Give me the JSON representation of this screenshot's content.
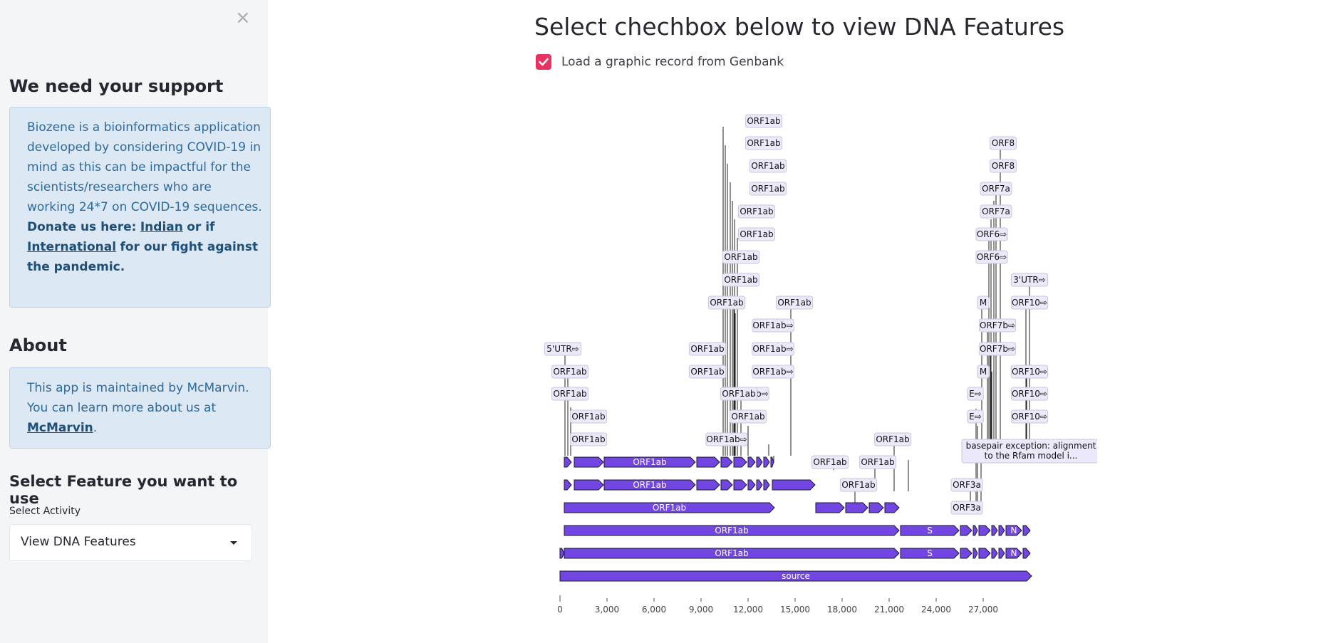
{
  "sidebar": {
    "close_glyph": "×",
    "support_heading": "We need your support",
    "support_text_1": "Biozene is a bioinformatics application developed by considering COVID-19 in mind as this can be impactful for the scientists/researchers who are working 24*7 on COVID-19 sequences.",
    "donate_text": "Donate us here:",
    "donate_link_indian": "Indian",
    "donate_or_if": "or if",
    "donate_link_international": "International",
    "donate_suffix": "for our fight against the pandemic.",
    "about_heading": "About",
    "about_text": "This app is maintained by McMarvin. You can learn more about us at",
    "about_link": "McMarvin",
    "about_period": ".",
    "feature_heading": "Select Feature you want to use",
    "activity_label": "Select Activity",
    "activity_value": "View DNA Features"
  },
  "main": {
    "title": "Select chechbox below to view DNA Features",
    "checkbox_label": "Load a graphic record from Genbank",
    "checkbox_checked": true
  },
  "colors": {
    "feature_fill": "#7246e0",
    "checkbox": "#e83362",
    "label_bg": "#ebe9fb"
  },
  "plot": {
    "axis_ticks": [
      "0",
      "3,000",
      "6,000",
      "9,000",
      "12,000",
      "15,000",
      "18,000",
      "21,000",
      "24,000",
      "27,000"
    ],
    "track_labels": {
      "source": "source",
      "orf1ab": "ORF1ab",
      "s": "S",
      "n": "N"
    },
    "annotation_labels": [
      "ORF1ab",
      "ORF1ab",
      "ORF1ab",
      "ORF1ab",
      "ORF1ab",
      "ORF1ab",
      "ORF1ab",
      "ORF1ab",
      "ORF1ab",
      "ORF1ab",
      "5'UTR⇨",
      "ORF1ab",
      "ORF1ab",
      "ORF1ab",
      "ORF1ab",
      "ORF1ab",
      "ORF1ab",
      "ORF1ab⇨",
      "ORF1ab⇨",
      "ORF1ab⇨",
      "ORF1ab⇨",
      "ORF1ab⇨",
      "ORF1ab",
      "ORF1ab",
      "ORF1ab",
      "ORF1ab",
      "ORF1ab",
      "ORF1ab",
      "ORF8",
      "ORF8",
      "ORF7a",
      "ORF7a",
      "ORF6⇨",
      "ORF6⇨",
      "3'UTR⇨",
      "M",
      "ORF10⇨",
      "ORF7b⇨",
      "ORF7b⇨",
      "M",
      "ORF10⇨",
      "E⇨",
      "ORF10⇨",
      "E⇨",
      "ORF10⇨",
      "basepair exception: alignment",
      "to the Rfam model i...",
      "ORF3a",
      "ORF3a"
    ]
  }
}
